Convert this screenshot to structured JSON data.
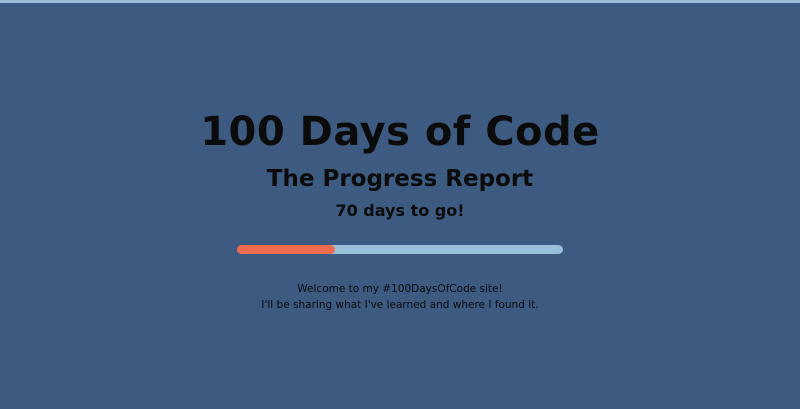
{
  "hero": {
    "title": "100 Days of Code",
    "subtitle": "The Progress Report",
    "countdown": "70 days to go!"
  },
  "progress": {
    "completed_fraction": 0.3
  },
  "intro": {
    "line1": "Welcome to my #100DaysOfCode site!",
    "line2": "I'll be sharing what I've learned and where I found it."
  },
  "colors": {
    "background": "#3d5a80",
    "accent_strip": "#98c1d9",
    "progress_track": "#98c1d9",
    "progress_fill": "#ee6c4d",
    "text": "#0b0b0b"
  }
}
